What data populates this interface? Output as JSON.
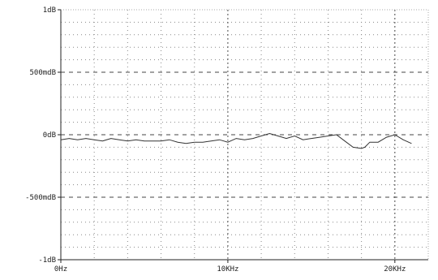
{
  "chart_data": {
    "type": "line",
    "title": "",
    "xlabel": "",
    "ylabel": "",
    "xlim": [
      0,
      22000
    ],
    "ylim": [
      -1,
      1
    ],
    "x_ticks": [
      {
        "value": 0,
        "label": "0Hz"
      },
      {
        "value": 10000,
        "label": "10KHz"
      },
      {
        "value": 20000,
        "label": "20KHz"
      }
    ],
    "y_ticks": [
      {
        "value": 1,
        "label": "1dB"
      },
      {
        "value": 0.5,
        "label": "500mdB"
      },
      {
        "value": 0,
        "label": "0dB"
      },
      {
        "value": -0.5,
        "label": "-500mdB"
      },
      {
        "value": -1,
        "label": "-1dB"
      }
    ],
    "grid": true,
    "series": [
      {
        "color": "#333333",
        "x": [
          0,
          500,
          1000,
          1500,
          2000,
          2500,
          3000,
          3500,
          4000,
          4500,
          5000,
          5500,
          6000,
          6500,
          7000,
          7500,
          8000,
          8500,
          9000,
          9500,
          10000,
          10500,
          11000,
          11500,
          12000,
          12500,
          13000,
          13500,
          14000,
          14500,
          15000,
          15500,
          16000,
          16500,
          17000,
          17500,
          18000,
          18200,
          18500,
          19000,
          19500,
          20000,
          20500,
          21000
        ],
        "y": [
          -0.04,
          -0.03,
          -0.04,
          -0.03,
          -0.04,
          -0.05,
          -0.03,
          -0.04,
          -0.05,
          -0.04,
          -0.05,
          -0.05,
          -0.05,
          -0.04,
          -0.06,
          -0.07,
          -0.06,
          -0.06,
          -0.05,
          -0.04,
          -0.06,
          -0.03,
          -0.04,
          -0.03,
          -0.01,
          0.01,
          -0.01,
          -0.03,
          -0.01,
          -0.04,
          -0.03,
          -0.02,
          -0.01,
          0.0,
          -0.05,
          -0.1,
          -0.11,
          -0.1,
          -0.06,
          -0.06,
          -0.02,
          0.0,
          -0.04,
          -0.07
        ]
      }
    ]
  }
}
